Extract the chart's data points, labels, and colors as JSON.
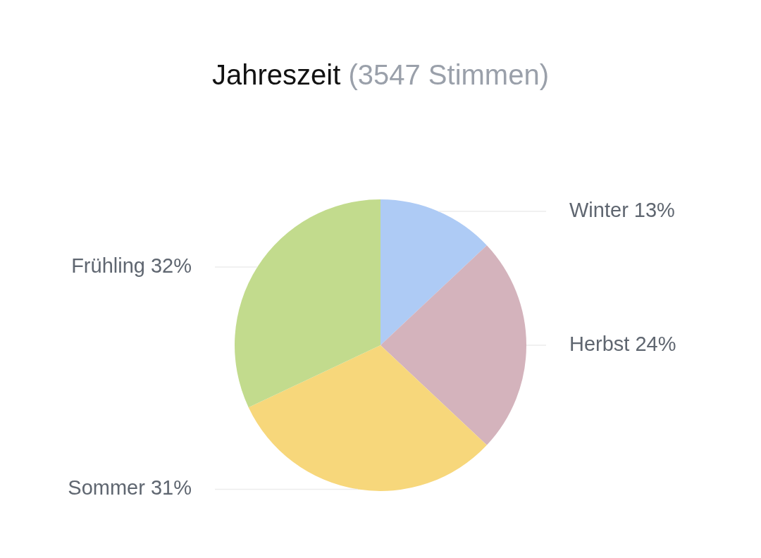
{
  "chart_data": {
    "type": "pie",
    "title": "Jahreszeit",
    "subtitle": "(3547 Stimmen)",
    "categories": [
      "Winter",
      "Herbst",
      "Sommer",
      "Frühling"
    ],
    "values": [
      13,
      24,
      31,
      32
    ],
    "colors": [
      "#aecbf5",
      "#d4b3bc",
      "#f7d77b",
      "#c2db8d"
    ],
    "value_labels": [
      "13%",
      "24%",
      "31%",
      "32%"
    ],
    "legend": false
  }
}
